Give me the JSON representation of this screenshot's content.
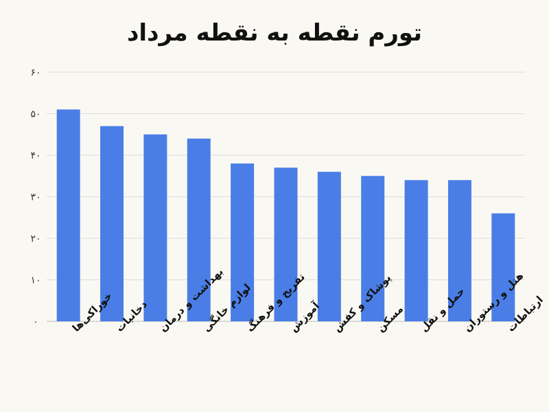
{
  "chart_data": {
    "type": "bar",
    "title": "تورم نقطه به نقطه مرداد",
    "categories": [
      "خوراکی‌ها",
      "دخانیات",
      "بهداشت و درمان",
      "لوازم خانگی",
      "تفریح و فرهنگ",
      "آموزش",
      "پوشاک و کفش",
      "مسکن",
      "حمل و نقل",
      "هتل و رستوران",
      "ارتباطات"
    ],
    "values": [
      51,
      47,
      45,
      44,
      38,
      37,
      36,
      35,
      34,
      34,
      26
    ],
    "yticks": [
      "۰",
      "۱۰",
      "۲۰",
      "۳۰",
      "۴۰",
      "۵۰",
      "۶۰"
    ],
    "ylim": [
      0,
      60
    ],
    "grid": true,
    "bar_color": "#4a7ee6"
  }
}
